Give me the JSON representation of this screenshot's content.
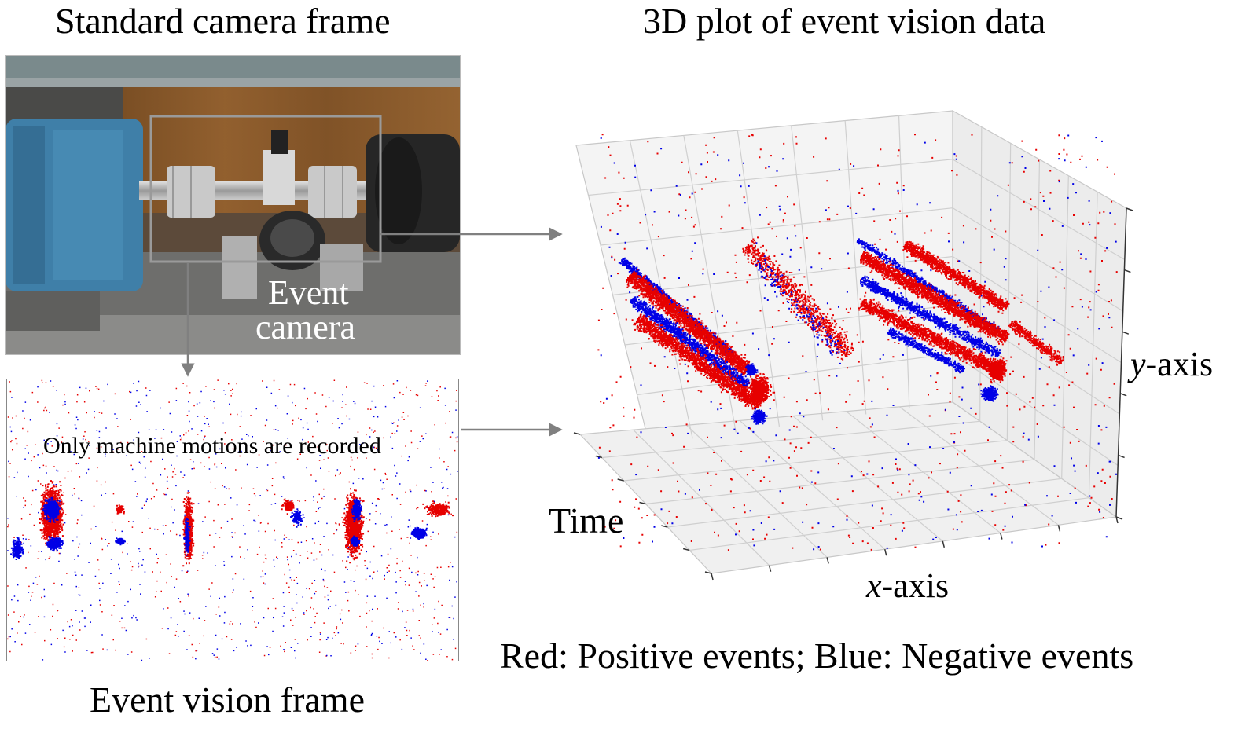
{
  "titles": {
    "camera": "Standard camera frame",
    "plot3d": "3D plot of event vision data",
    "event_frame": "Event vision frame"
  },
  "photo": {
    "callout_line1": "Event",
    "callout_line2": "camera"
  },
  "event_frame": {
    "annotation": "Only machine motions are recorded"
  },
  "plot3d": {
    "time_label": "Time",
    "x_var": "x",
    "x_suffix": "-axis",
    "y_var": "y",
    "y_suffix": "-axis"
  },
  "legend": "Red: Positive events; Blue: Negative events",
  "colors": {
    "positive": "#e60000",
    "negative": "#0000e6",
    "arrow": "#808080",
    "motor_blue": "#3f7fa8",
    "wood": "#8a5a2b"
  }
}
